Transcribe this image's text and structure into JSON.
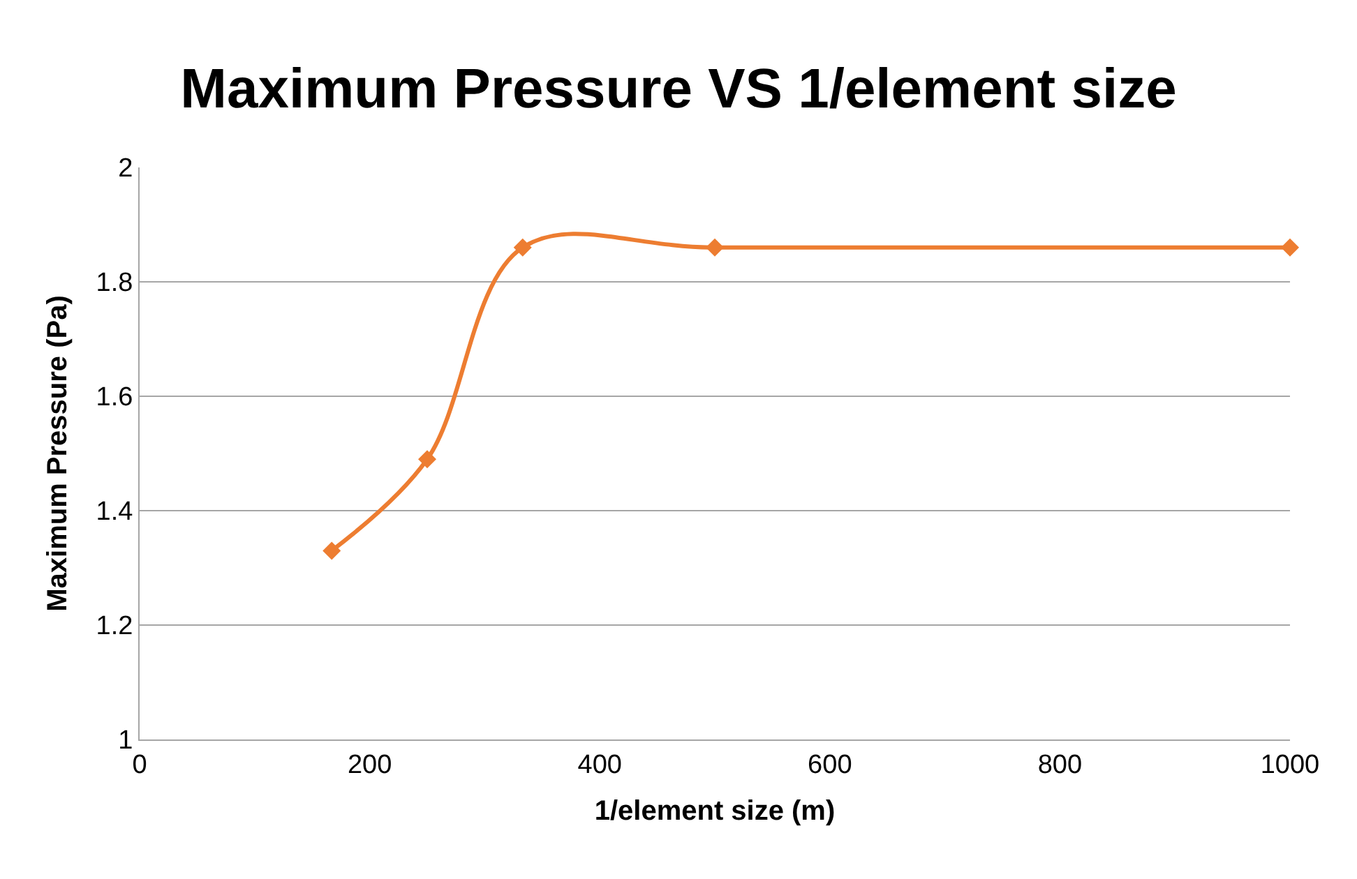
{
  "chart_data": {
    "type": "line",
    "title": "Maximum Pressure VS 1/element size",
    "xlabel": "1/element size (m)",
    "ylabel": "Maximum Pressure (Pa)",
    "x": [
      167,
      250,
      333,
      500,
      1000
    ],
    "series": [
      {
        "color": "#ed7d31",
        "values": [
          1.33,
          1.49,
          1.86,
          1.86,
          1.86
        ]
      }
    ],
    "xlim": [
      0,
      1000
    ],
    "xticks": [
      0,
      200,
      400,
      600,
      800,
      1000
    ],
    "ylim": [
      1,
      2
    ],
    "yticks": [
      1,
      1.2,
      1.4,
      1.6,
      1.8,
      2
    ],
    "grid": "y",
    "marker": "diamond",
    "line_style": "solid"
  }
}
